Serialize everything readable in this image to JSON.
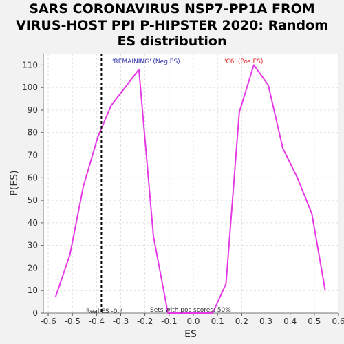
{
  "chart_data": {
    "type": "line",
    "title_lines": [
      "SARS CORONAVIRUS NSP7-PP1A FROM",
      "VIRUS-HOST PPI P-HIPSTER 2020: Random",
      "ES distribution"
    ],
    "xlabel": "ES",
    "ylabel": "P(ES)",
    "xlim": [
      -0.62,
      0.6
    ],
    "ylim": [
      0,
      115
    ],
    "x_ticks": [
      -0.6,
      -0.5,
      -0.4,
      -0.3,
      -0.2,
      -0.1,
      0.0,
      0.1,
      0.2,
      0.3,
      0.4,
      0.5,
      0.6
    ],
    "x_tick_labels": [
      "-0.6",
      "-0.5",
      "-0.4",
      "-0.3",
      "-0.2",
      "-0.1",
      "0.0",
      "0.1",
      "0.2",
      "0.3",
      "0.4",
      "0.5",
      "0.6"
    ],
    "y_ticks": [
      0,
      10,
      20,
      30,
      40,
      50,
      60,
      70,
      80,
      90,
      100,
      110
    ],
    "y_tick_labels": [
      "0",
      "10",
      "20",
      "30",
      "40",
      "50",
      "60",
      "70",
      "80",
      "90",
      "100",
      "110"
    ],
    "grid": true,
    "series": [
      {
        "color": "#e639e6",
        "x": [
          -0.57,
          -0.51,
          -0.455,
          -0.395,
          -0.34,
          -0.225,
          -0.165,
          -0.105,
          0.08,
          0.135,
          0.19,
          0.25,
          0.31,
          0.37,
          0.43,
          0.49,
          0.545
        ],
        "y": [
          7,
          26,
          56,
          78,
          92,
          108,
          34,
          0,
          0,
          13,
          89,
          110,
          101,
          73,
          60,
          44,
          10
        ]
      }
    ],
    "vline": {
      "x": -0.38,
      "style": "dashed",
      "color": "#000000"
    },
    "annotations": {
      "neg_label": {
        "text": "'REMAINING' (Neg ES)",
        "color": "#3333aa"
      },
      "pos_label": {
        "text": "'C6' (Pos ES)",
        "color": "#dd2222"
      },
      "real_es": {
        "text": "Real ES -0.4",
        "color": "#333333"
      },
      "sets_pos": {
        "text": "Sets with pos scores: 50%",
        "color": "#333333"
      }
    },
    "colors": {
      "plot_background": "#ffffff",
      "page_background": "#f2f2f2",
      "grid": "#e0e0e0"
    }
  }
}
